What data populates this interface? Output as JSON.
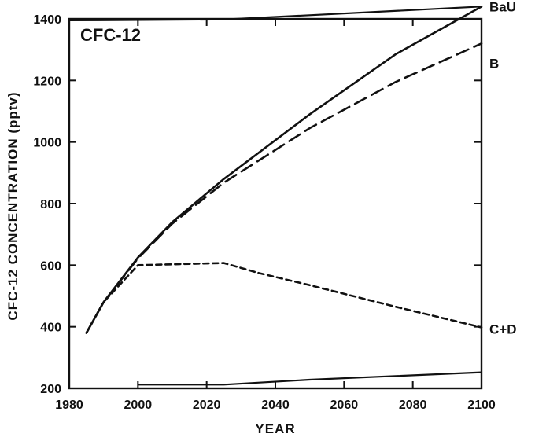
{
  "chart_data": {
    "type": "line",
    "title": "CFC-12",
    "xlabel": "YEAR",
    "ylabel": "CFC-12 CONCENTRATION (pptv)",
    "xlim": [
      1980,
      2100
    ],
    "ylim": [
      200,
      1400
    ],
    "xticks": [
      1980,
      2000,
      2020,
      2040,
      2060,
      2080,
      2100
    ],
    "yticks": [
      200,
      400,
      600,
      800,
      1000,
      1200,
      1400
    ],
    "grid": false,
    "series": [
      {
        "name": "BaU",
        "style": "solid",
        "x": [
          1985,
          1990,
          2000,
          2010,
          2025,
          2050,
          2075,
          2100
        ],
        "y": [
          380,
          480,
          625,
          740,
          880,
          1090,
          1285,
          1440
        ]
      },
      {
        "name": "B",
        "style": "dashed",
        "x": [
          1985,
          1990,
          2000,
          2010,
          2025,
          2050,
          2075,
          2100
        ],
        "y": [
          380,
          480,
          622,
          735,
          868,
          1045,
          1195,
          1320
        ]
      },
      {
        "name": "C+D",
        "style": "dotted",
        "x": [
          1985,
          1990,
          2000,
          2025,
          2035,
          2050,
          2075,
          2100
        ],
        "y": [
          380,
          480,
          600,
          607,
          575,
          535,
          465,
          398
        ]
      }
    ]
  }
}
